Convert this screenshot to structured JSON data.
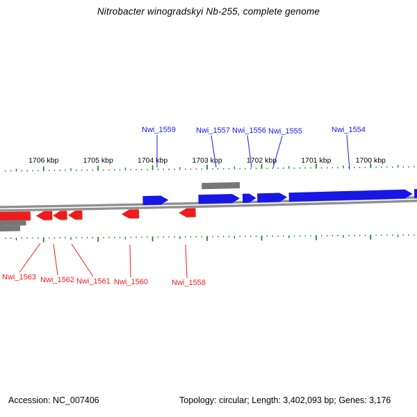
{
  "title": "Nitrobacter winogradskyi Nb-255, complete genome",
  "footer": {
    "accession": "Accession: NC_007406",
    "stats": "Topology: circular; Length: 3,402,093 bp; Genes: 3,176"
  },
  "colors": {
    "forward": "#1717e6",
    "reverse": "#ee1c1c",
    "neutral": "#777777",
    "backbone": "#8f8f8f",
    "tick": "#138813",
    "text": "#000000"
  },
  "chart_data": {
    "type": "genome-map",
    "axis": {
      "unit": "kbp",
      "kbp_at_left_edge": 1706.8,
      "kbp_at_right_edge": 1699.15,
      "minor_tick_kbp": 0.1,
      "major_tick_kbp": 1.0,
      "tick_labels": [
        "1706 kbp",
        "1705 kbp",
        "1704 kbp",
        "1703 kbp",
        "1702 kbp",
        "1701 kbp",
        "1700 kbp"
      ],
      "tick_label_kbp": [
        1706,
        1705,
        1704,
        1703,
        1702,
        1701,
        1700
      ]
    },
    "features": [
      {
        "name": "Nwi_1559",
        "color": "blue",
        "shape": "arrow",
        "dir": "right",
        "lane": "fwd",
        "kbp": [
          1704.18,
          1703.71
        ]
      },
      {
        "name": "Nwi_1557",
        "color": "blue",
        "shape": "arrow",
        "dir": "right",
        "lane": "fwd",
        "kbp": [
          1703.16,
          1702.4
        ]
      },
      {
        "name": "Nwi_1556",
        "color": "blue",
        "shape": "arrow",
        "dir": "right",
        "lane": "fwd",
        "kbp": [
          1702.35,
          1702.1
        ]
      },
      {
        "name": "Nwi_1555",
        "color": "blue",
        "shape": "arrow",
        "dir": "right",
        "lane": "fwd",
        "kbp": [
          1702.08,
          1701.53
        ]
      },
      {
        "name": "Nwi_1554",
        "color": "blue",
        "shape": "arrow",
        "dir": "right",
        "lane": "fwd",
        "kbp": [
          1701.5,
          1699.23
        ]
      },
      {
        "name": "",
        "color": "blue",
        "shape": "rect",
        "dir": "right",
        "lane": "fwd",
        "kbp": [
          1699.2,
          1699.14
        ]
      },
      {
        "name": "",
        "color": "gray",
        "shape": "rect",
        "dir": "right",
        "lane": "fwd2",
        "kbp": [
          1703.1,
          1702.4
        ]
      },
      {
        "name": "",
        "color": "red",
        "shape": "rect",
        "dir": "left",
        "lane": "rev",
        "kbp": [
          1706.8,
          1706.24
        ]
      },
      {
        "name": "Nwi_1563",
        "color": "red",
        "shape": "arrow",
        "dir": "left",
        "lane": "rev",
        "kbp": [
          1706.14,
          1705.84
        ]
      },
      {
        "name": "Nwi_1562",
        "color": "red",
        "shape": "arrow",
        "dir": "left",
        "lane": "rev",
        "kbp": [
          1705.83,
          1705.57
        ]
      },
      {
        "name": "Nwi_1561",
        "color": "red",
        "shape": "arrow",
        "dir": "left",
        "lane": "rev",
        "kbp": [
          1705.55,
          1705.29
        ]
      },
      {
        "name": "Nwi_1560",
        "color": "red",
        "shape": "arrow",
        "dir": "left",
        "lane": "rev",
        "kbp": [
          1704.57,
          1704.25
        ]
      },
      {
        "name": "Nwi_1558",
        "color": "red",
        "shape": "arrow",
        "dir": "left",
        "lane": "rev",
        "kbp": [
          1703.52,
          1703.21
        ]
      },
      {
        "name": "",
        "color": "gray",
        "shape": "rect",
        "dir": "left",
        "lane": "rev2",
        "kbp": [
          1706.8,
          1706.32
        ]
      },
      {
        "name": "",
        "color": "gray",
        "shape": "rect",
        "dir": "left",
        "lane": "rev3",
        "kbp": [
          1706.8,
          1706.43
        ]
      }
    ],
    "gene_labels": {
      "forward": [
        "Nwi_1559",
        "Nwi_1557",
        "Nwi_1556",
        "Nwi_1555",
        "Nwi_1554"
      ],
      "reverse": [
        "Nwi_1563",
        "Nwi_1562",
        "Nwi_1561",
        "Nwi_1560",
        "Nwi_1558"
      ]
    }
  }
}
